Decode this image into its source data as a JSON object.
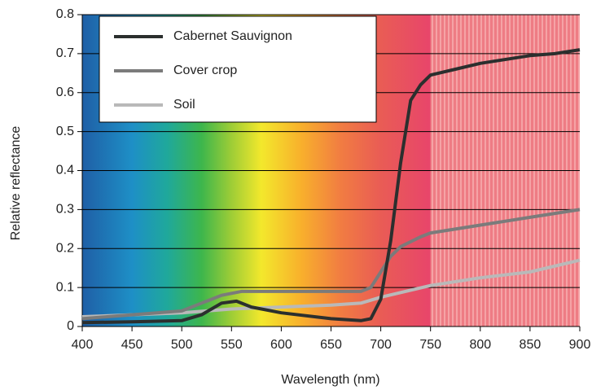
{
  "chart_data": {
    "type": "line",
    "xlabel": "Wavelength (nm)",
    "ylabel": "Relative reflectance",
    "xlim": [
      400,
      900
    ],
    "ylim": [
      0,
      0.8
    ],
    "xticks": [
      400,
      450,
      500,
      550,
      600,
      650,
      700,
      750,
      800,
      850,
      900
    ],
    "yticks": [
      0,
      0.1,
      0.2,
      0.3,
      0.4,
      0.5,
      0.6,
      0.7,
      0.8
    ],
    "grid": true,
    "legend": "upper left",
    "series": [
      {
        "name": "Cabernet Sauvignon",
        "color": "#2b2f2e",
        "x": [
          400,
          450,
          500,
          520,
          540,
          555,
          570,
          600,
          650,
          680,
          690,
          700,
          710,
          720,
          730,
          740,
          750,
          775,
          800,
          850,
          875,
          900
        ],
        "values": [
          0.01,
          0.012,
          0.015,
          0.03,
          0.06,
          0.065,
          0.05,
          0.035,
          0.02,
          0.015,
          0.02,
          0.07,
          0.22,
          0.42,
          0.58,
          0.62,
          0.645,
          0.66,
          0.675,
          0.695,
          0.7,
          0.71
        ]
      },
      {
        "name": "Cover crop",
        "color": "#7b7b7b",
        "x": [
          400,
          450,
          500,
          520,
          540,
          560,
          600,
          650,
          680,
          690,
          700,
          710,
          720,
          740,
          750,
          800,
          850,
          900
        ],
        "values": [
          0.02,
          0.03,
          0.04,
          0.06,
          0.08,
          0.09,
          0.09,
          0.09,
          0.09,
          0.1,
          0.14,
          0.18,
          0.205,
          0.23,
          0.24,
          0.26,
          0.28,
          0.3
        ]
      },
      {
        "name": "Soil",
        "color": "#b9b9b9",
        "x": [
          400,
          450,
          500,
          550,
          600,
          650,
          680,
          700,
          750,
          800,
          850,
          900
        ],
        "values": [
          0.025,
          0.03,
          0.035,
          0.045,
          0.05,
          0.055,
          0.06,
          0.075,
          0.105,
          0.125,
          0.14,
          0.17
        ]
      }
    ]
  }
}
